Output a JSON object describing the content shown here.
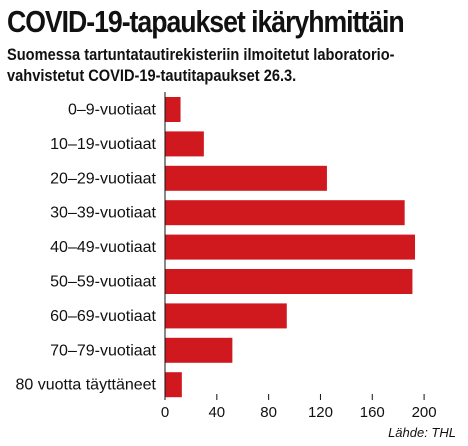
{
  "chart_data": {
    "type": "bar",
    "orientation": "horizontal",
    "title": "COVID-19-tapaukset ikäryhmittäin",
    "subtitle": [
      "Suomessa tartuntatautirekisteriin ilmoitetut laboratorio-",
      "vahvistetut COVID-19-tautitapaukset 26.3."
    ],
    "categories": [
      "0–9-vuotiaat",
      "10–19-vuotiaat",
      "20–29-vuotiaat",
      "30–39-vuotiaat",
      "40–49-vuotiaat",
      "50–59-vuotiaat",
      "60–69-vuotiaat",
      "70–79-vuotiaat",
      "80 vuotta täyttäneet"
    ],
    "values": [
      12,
      30,
      125,
      185,
      193,
      191,
      94,
      52,
      13
    ],
    "xlim": [
      0,
      220
    ],
    "xticks": [
      "0",
      "40",
      "80",
      "120",
      "160",
      "200"
    ],
    "bar_color": "#d0191f",
    "grid": false,
    "source": "Lähde: THL"
  }
}
